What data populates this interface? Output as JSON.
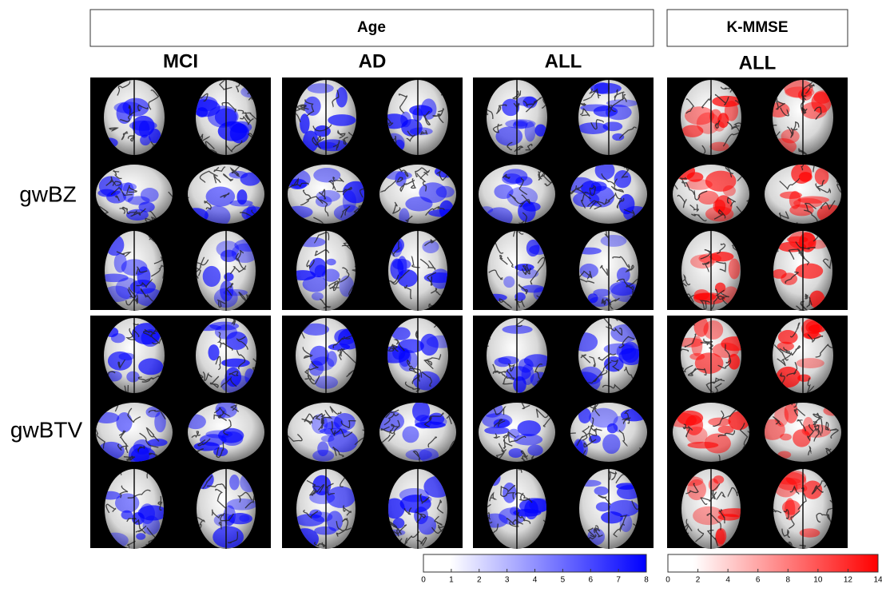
{
  "headers": [
    "Age",
    "K-MMSE"
  ],
  "columns": [
    "MCI",
    "AD",
    "ALL",
    "ALL"
  ],
  "rows": [
    "gwBZ",
    "gwBTV"
  ],
  "colorbars": [
    {
      "lim": [
        0,
        8
      ],
      "ticks": [
        0,
        1,
        2,
        3,
        4,
        5,
        6,
        7,
        8
      ],
      "color": "#0000ff"
    },
    {
      "lim": [
        0,
        14
      ],
      "ticks": [
        0,
        2,
        4,
        6,
        8,
        10,
        12,
        14
      ],
      "color": "#ff0000"
    }
  ]
}
